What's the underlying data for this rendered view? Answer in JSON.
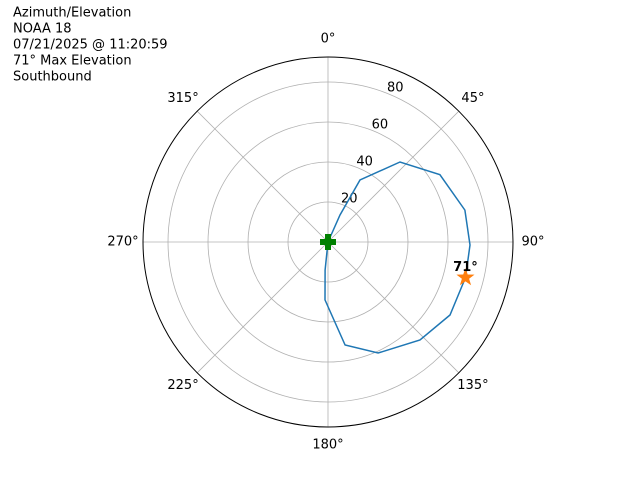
{
  "chart_data": {
    "type": "polar",
    "text_lines": [
      "Azimuth/Elevation",
      "NOAA 18",
      "07/21/2025 @ 11:20:59",
      "71° Max Elevation",
      "Southbound"
    ],
    "theta_zero": "N",
    "theta_direction": "clockwise",
    "rlim": [
      0,
      92.5
    ],
    "rticks": [
      20,
      40,
      60,
      80
    ],
    "thetaticks": [
      {
        "value": 0,
        "label": "0°"
      },
      {
        "value": 45,
        "label": "45°"
      },
      {
        "value": 90,
        "label": "90°"
      },
      {
        "value": 135,
        "label": "135°"
      },
      {
        "value": 180,
        "label": "180°"
      },
      {
        "value": 225,
        "label": "225°"
      },
      {
        "value": 270,
        "label": "270°"
      },
      {
        "value": 315,
        "label": "315°"
      }
    ],
    "grid": true,
    "series": [
      {
        "marker": "line",
        "color": "#1f77b4",
        "theta": [
          0,
          24,
          27.3,
          42,
          59,
          76.9,
          91.2,
          104.5,
          120.9,
          136.8,
          155.7,
          170.6,
          183,
          186,
          0
        ],
        "r": [
          0,
          14.8,
          34.9,
          53.8,
          65.3,
          70.3,
          71,
          71,
          71.1,
          67.2,
          60.9,
          52.2,
          29,
          14.1,
          0
        ]
      },
      {
        "marker": "plus",
        "color": "#008000",
        "theta": [
          0
        ],
        "r": [
          0
        ]
      },
      {
        "marker": "star",
        "color": "#ff7f0e",
        "theta": [
          104.5
        ],
        "r": [
          71
        ],
        "value_labels": [
          "71°"
        ]
      }
    ]
  }
}
